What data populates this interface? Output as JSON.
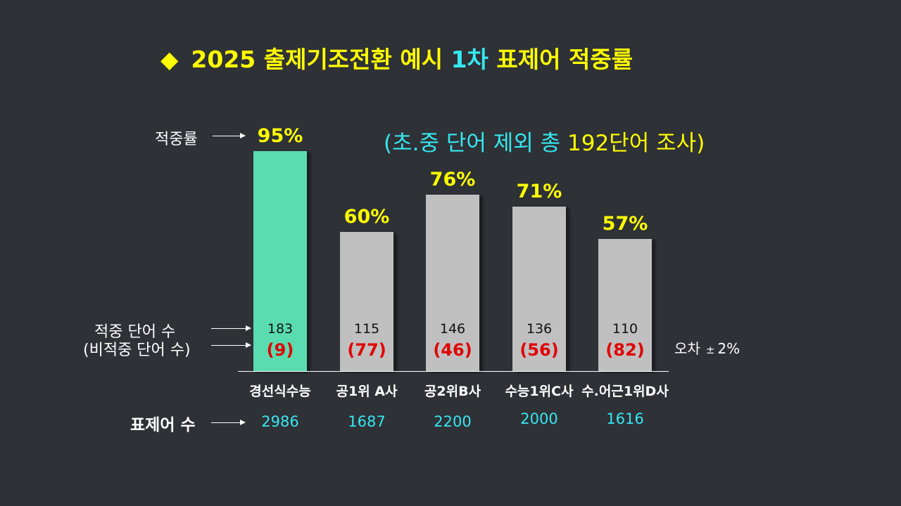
{
  "title": {
    "prefix": "◆",
    "text_before": "2025 출제기조전환 예시 ",
    "highlight": "1차",
    "text_after": " 표제어 적중률"
  },
  "subtitle": {
    "text_before": "(초.중 단어 제외 총 ",
    "highlight": "192단어 조사)"
  },
  "labels": {
    "hit_rate": "적중률",
    "hit_words": "적중 단어 수",
    "miss_words": "(비적중 단어 수)",
    "headword_count": "표제어 수"
  },
  "error_note": {
    "label": "오차",
    "pm": "±",
    "value": "2%"
  },
  "colors": {
    "background": "#2e3136",
    "highlight_bar": "#5adcb0",
    "default_bar": "#c0c0c0",
    "title": "#ffff00",
    "accent": "#37e7f0",
    "miss": "#e00000"
  },
  "chart_data": {
    "type": "bar",
    "categories": [
      "경선식수능",
      "공1위 A사",
      "공2위B사",
      "수능1위C사",
      "수.어근1위D사"
    ],
    "values": [
      95,
      60,
      76,
      71,
      57
    ],
    "value_labels": [
      "95%",
      "60%",
      "76%",
      "71%",
      "57%"
    ],
    "hit_words": [
      "183",
      "115",
      "146",
      "136",
      "110"
    ],
    "miss_words": [
      "(9)",
      "(77)",
      "(46)",
      "(56)",
      "(82)"
    ],
    "headword_counts": [
      "2986",
      "1687",
      "2200",
      "2000",
      "1616"
    ],
    "title": "2025 출제기조전환 예시 1차 표제어 적중률",
    "xlabel": "",
    "ylabel": "적중률",
    "ylim": [
      0,
      100
    ]
  }
}
